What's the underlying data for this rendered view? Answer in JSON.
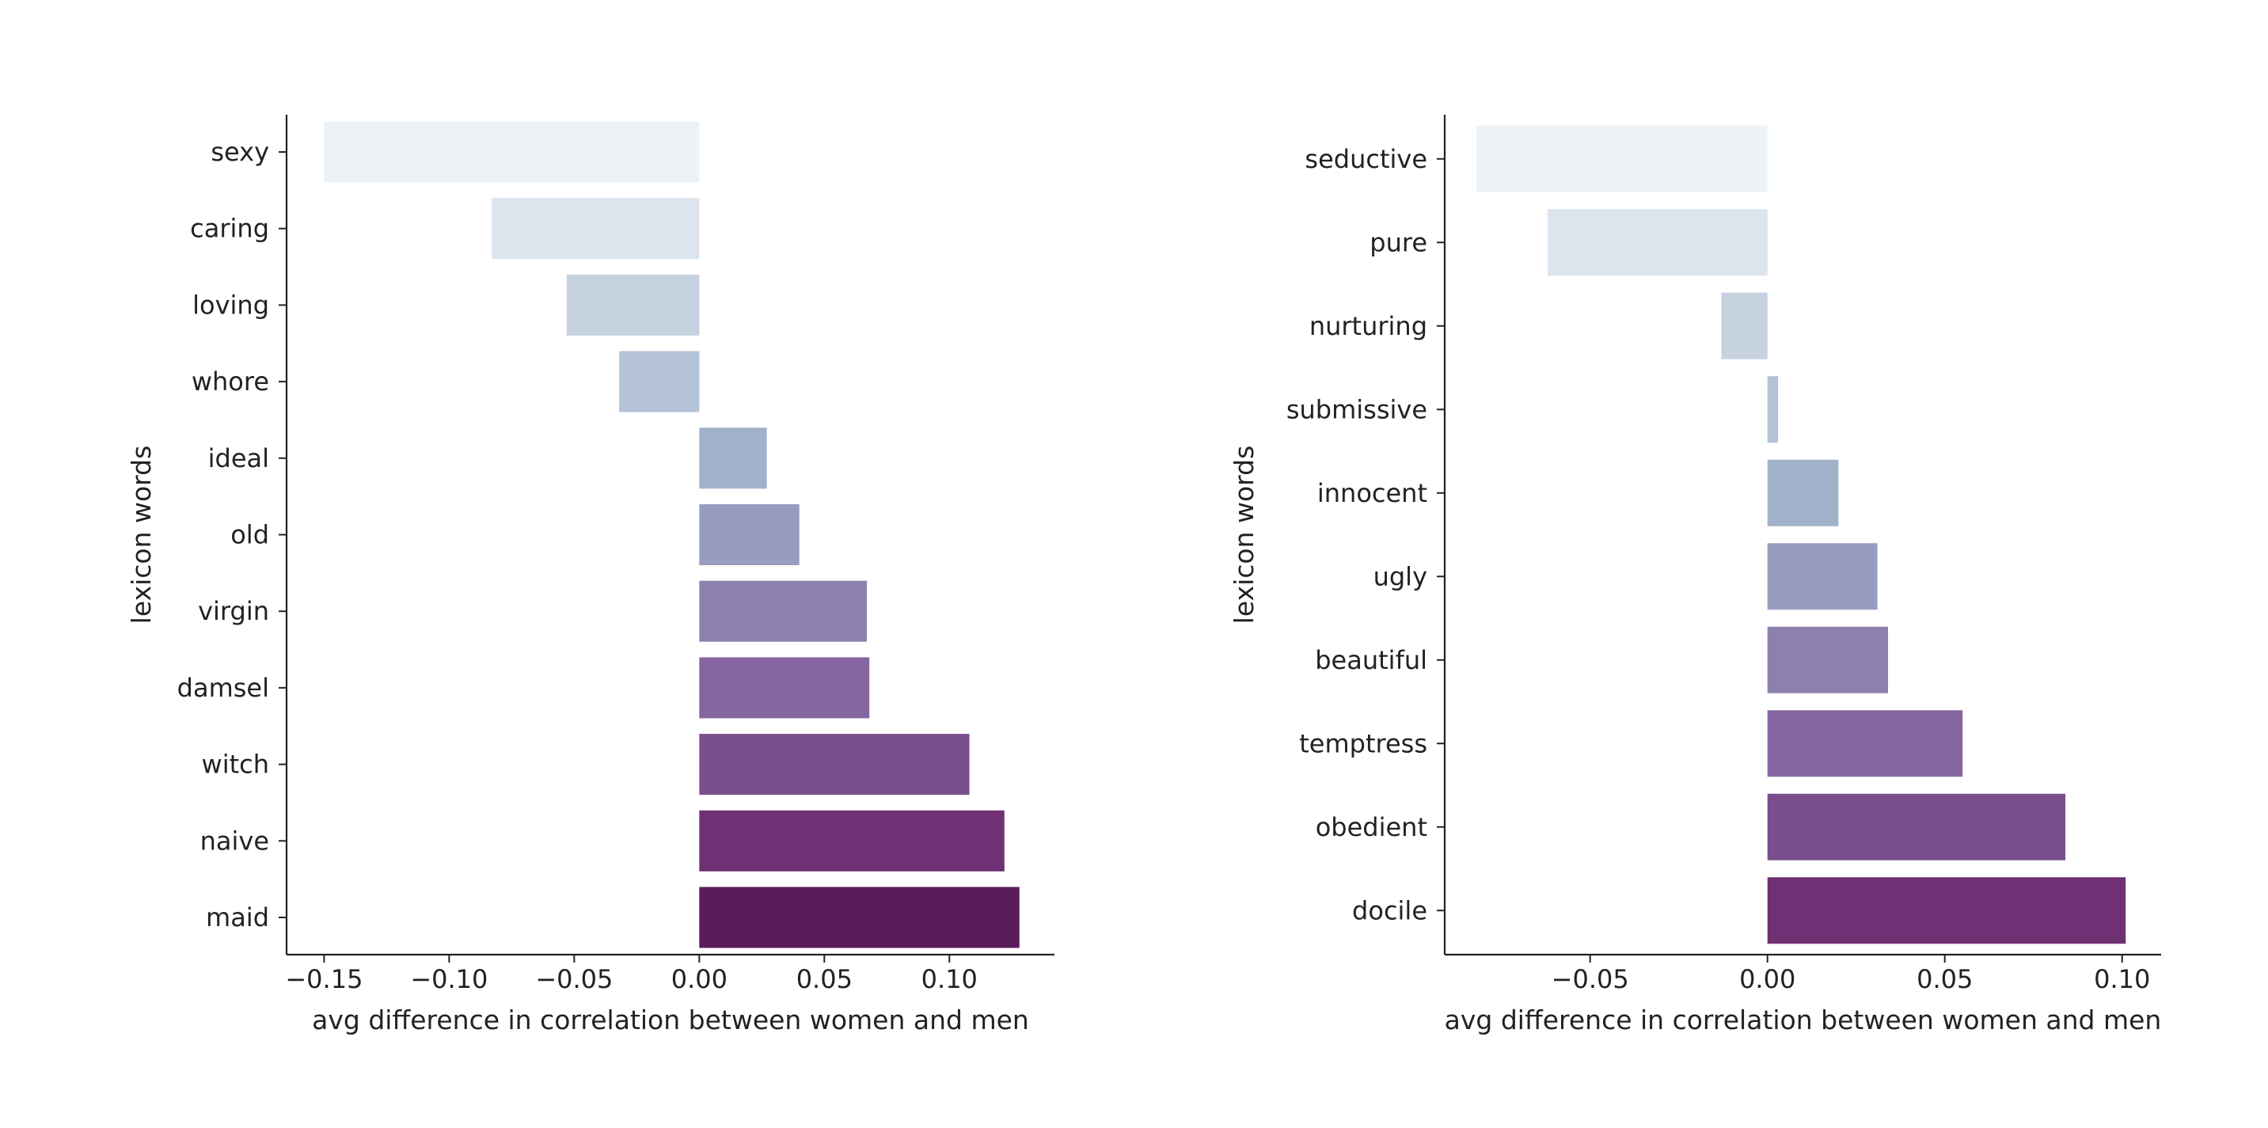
{
  "chart_data": [
    {
      "type": "bar",
      "orientation": "horizontal",
      "ylabel": "lexicon words",
      "xlabel": "avg difference in correlation between women and men",
      "xlim": [
        -0.165,
        0.142
      ],
      "xticks": [
        -0.15,
        -0.1,
        -0.05,
        0.0,
        0.05,
        0.1
      ],
      "xtick_labels": [
        "−0.15",
        "−0.10",
        "−0.05",
        "0.00",
        "0.05",
        "0.10"
      ],
      "grid": false,
      "categories": [
        "sexy",
        "caring",
        "loving",
        "whore",
        "ideal",
        "old",
        "virgin",
        "damsel",
        "witch",
        "naive",
        "maid"
      ],
      "values": [
        -0.15,
        -0.083,
        -0.053,
        -0.032,
        0.027,
        0.04,
        0.067,
        0.068,
        0.108,
        0.122,
        0.128
      ],
      "colors": [
        "#edf2f7",
        "#dce4ed",
        "#c6d2df",
        "#b3c2d6",
        "#a2b1ca",
        "#979dbf",
        "#8e80ae",
        "#8666a0",
        "#7a4e8c",
        "#6f3173",
        "#5b1c5e"
      ]
    },
    {
      "type": "bar",
      "orientation": "horizontal",
      "ylabel": "lexicon words",
      "xlabel": "avg difference in correlation between women and men",
      "xlim": [
        -0.091,
        0.111
      ],
      "xticks": [
        -0.05,
        0.0,
        0.05,
        0.1
      ],
      "xtick_labels": [
        "−0.05",
        "0.00",
        "0.05",
        "0.10"
      ],
      "grid": false,
      "categories": [
        "seductive",
        "pure",
        "nurturing",
        "submissive",
        "innocent",
        "ugly",
        "beautiful",
        "temptress",
        "obedient",
        "docile"
      ],
      "values": [
        -0.082,
        -0.062,
        -0.013,
        0.003,
        0.02,
        0.031,
        0.034,
        0.055,
        0.084,
        0.101
      ],
      "colors": [
        "#edf2f7",
        "#dce4ed",
        "#c6d2df",
        "#b3c2d6",
        "#a2b1ca",
        "#979dbf",
        "#8e80ae",
        "#8666a0",
        "#7a4e8c",
        "#6f3173"
      ]
    }
  ]
}
